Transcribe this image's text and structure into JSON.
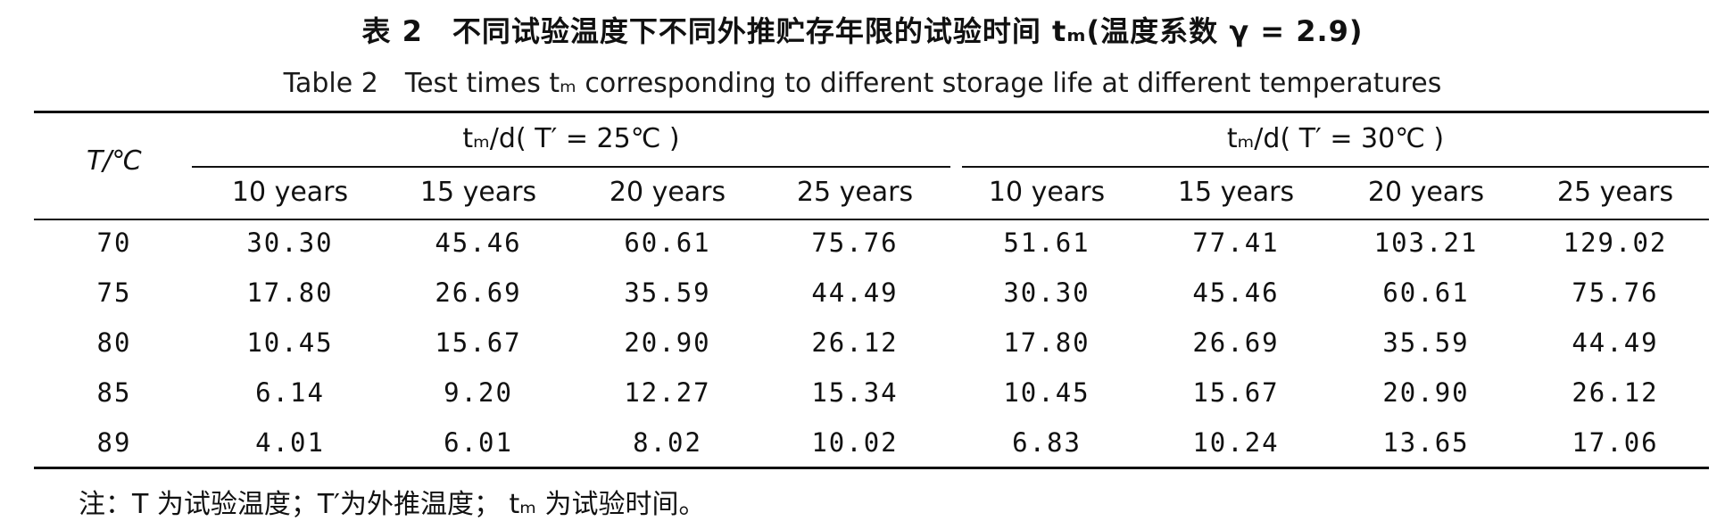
{
  "caption_cn": "表 2　不同试验温度下不同外推贮存年限的试验时间 tₘ(温度系数 γ = 2.9)",
  "caption_en": "Table 2　Test times tₘ corresponding to different storage life at different temperatures",
  "table": {
    "row_header": "T/℃",
    "group_headers": [
      "tₘ/d( T′ = 25℃ )",
      "tₘ/d( T′ = 30℃ )"
    ],
    "column_headers": [
      "10 years",
      "15 years",
      "20 years",
      "25 years",
      "10 years",
      "15 years",
      "20 years",
      "25 years"
    ],
    "rows": [
      {
        "T": "70",
        "values": [
          "30.30",
          "45.46",
          "60.61",
          "75.76",
          "51.61",
          "77.41",
          "103.21",
          "129.02"
        ]
      },
      {
        "T": "75",
        "values": [
          "17.80",
          "26.69",
          "35.59",
          "44.49",
          "30.30",
          "45.46",
          "60.61",
          "75.76"
        ]
      },
      {
        "T": "80",
        "values": [
          "10.45",
          "15.67",
          "20.90",
          "26.12",
          "17.80",
          "26.69",
          "35.59",
          "44.49"
        ]
      },
      {
        "T": "85",
        "values": [
          "6.14",
          "9.20",
          "12.27",
          "15.34",
          "10.45",
          "15.67",
          "20.90",
          "26.12"
        ]
      },
      {
        "T": "89",
        "values": [
          "4.01",
          "6.01",
          "8.02",
          "10.02",
          "6.83",
          "10.24",
          "13.65",
          "17.06"
        ]
      }
    ]
  },
  "note": "注：T 为试验温度；T′为外推温度； tₘ 为试验时间。"
}
